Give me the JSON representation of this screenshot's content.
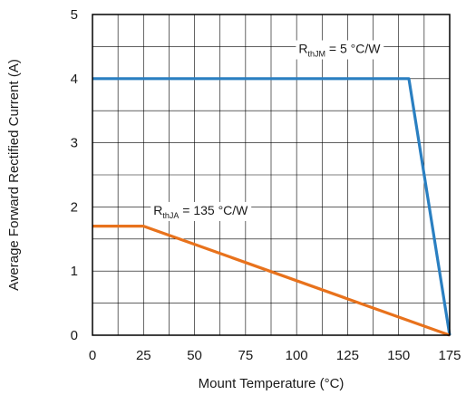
{
  "chart_data": {
    "type": "line",
    "xlabel": "Mount Temperature (°C)",
    "ylabel": "Average Forward Rectified Current (A)",
    "xlim": [
      0,
      175
    ],
    "ylim": [
      0,
      5
    ],
    "xticks": [
      0,
      25,
      50,
      75,
      100,
      125,
      150,
      175
    ],
    "yticks": [
      0,
      1,
      2,
      3,
      4,
      5
    ],
    "x_minor_step": 12.5,
    "y_minor_step": 0.5,
    "grid": true,
    "series": [
      {
        "color": "#2a7fc1",
        "x": [
          0,
          155,
          175
        ],
        "y": [
          4,
          4,
          0
        ],
        "label": {
          "main": "R",
          "sub": "thJM",
          "rest": " = 5 °C/W",
          "x": 121,
          "y": 4.47
        }
      },
      {
        "color": "#e8721c",
        "x": [
          0,
          25,
          175
        ],
        "y": [
          1.7,
          1.7,
          0
        ],
        "label": {
          "main": "R",
          "sub": "thJA",
          "rest": " = 135 °C/W",
          "x": 53,
          "y": 1.95
        }
      }
    ]
  }
}
